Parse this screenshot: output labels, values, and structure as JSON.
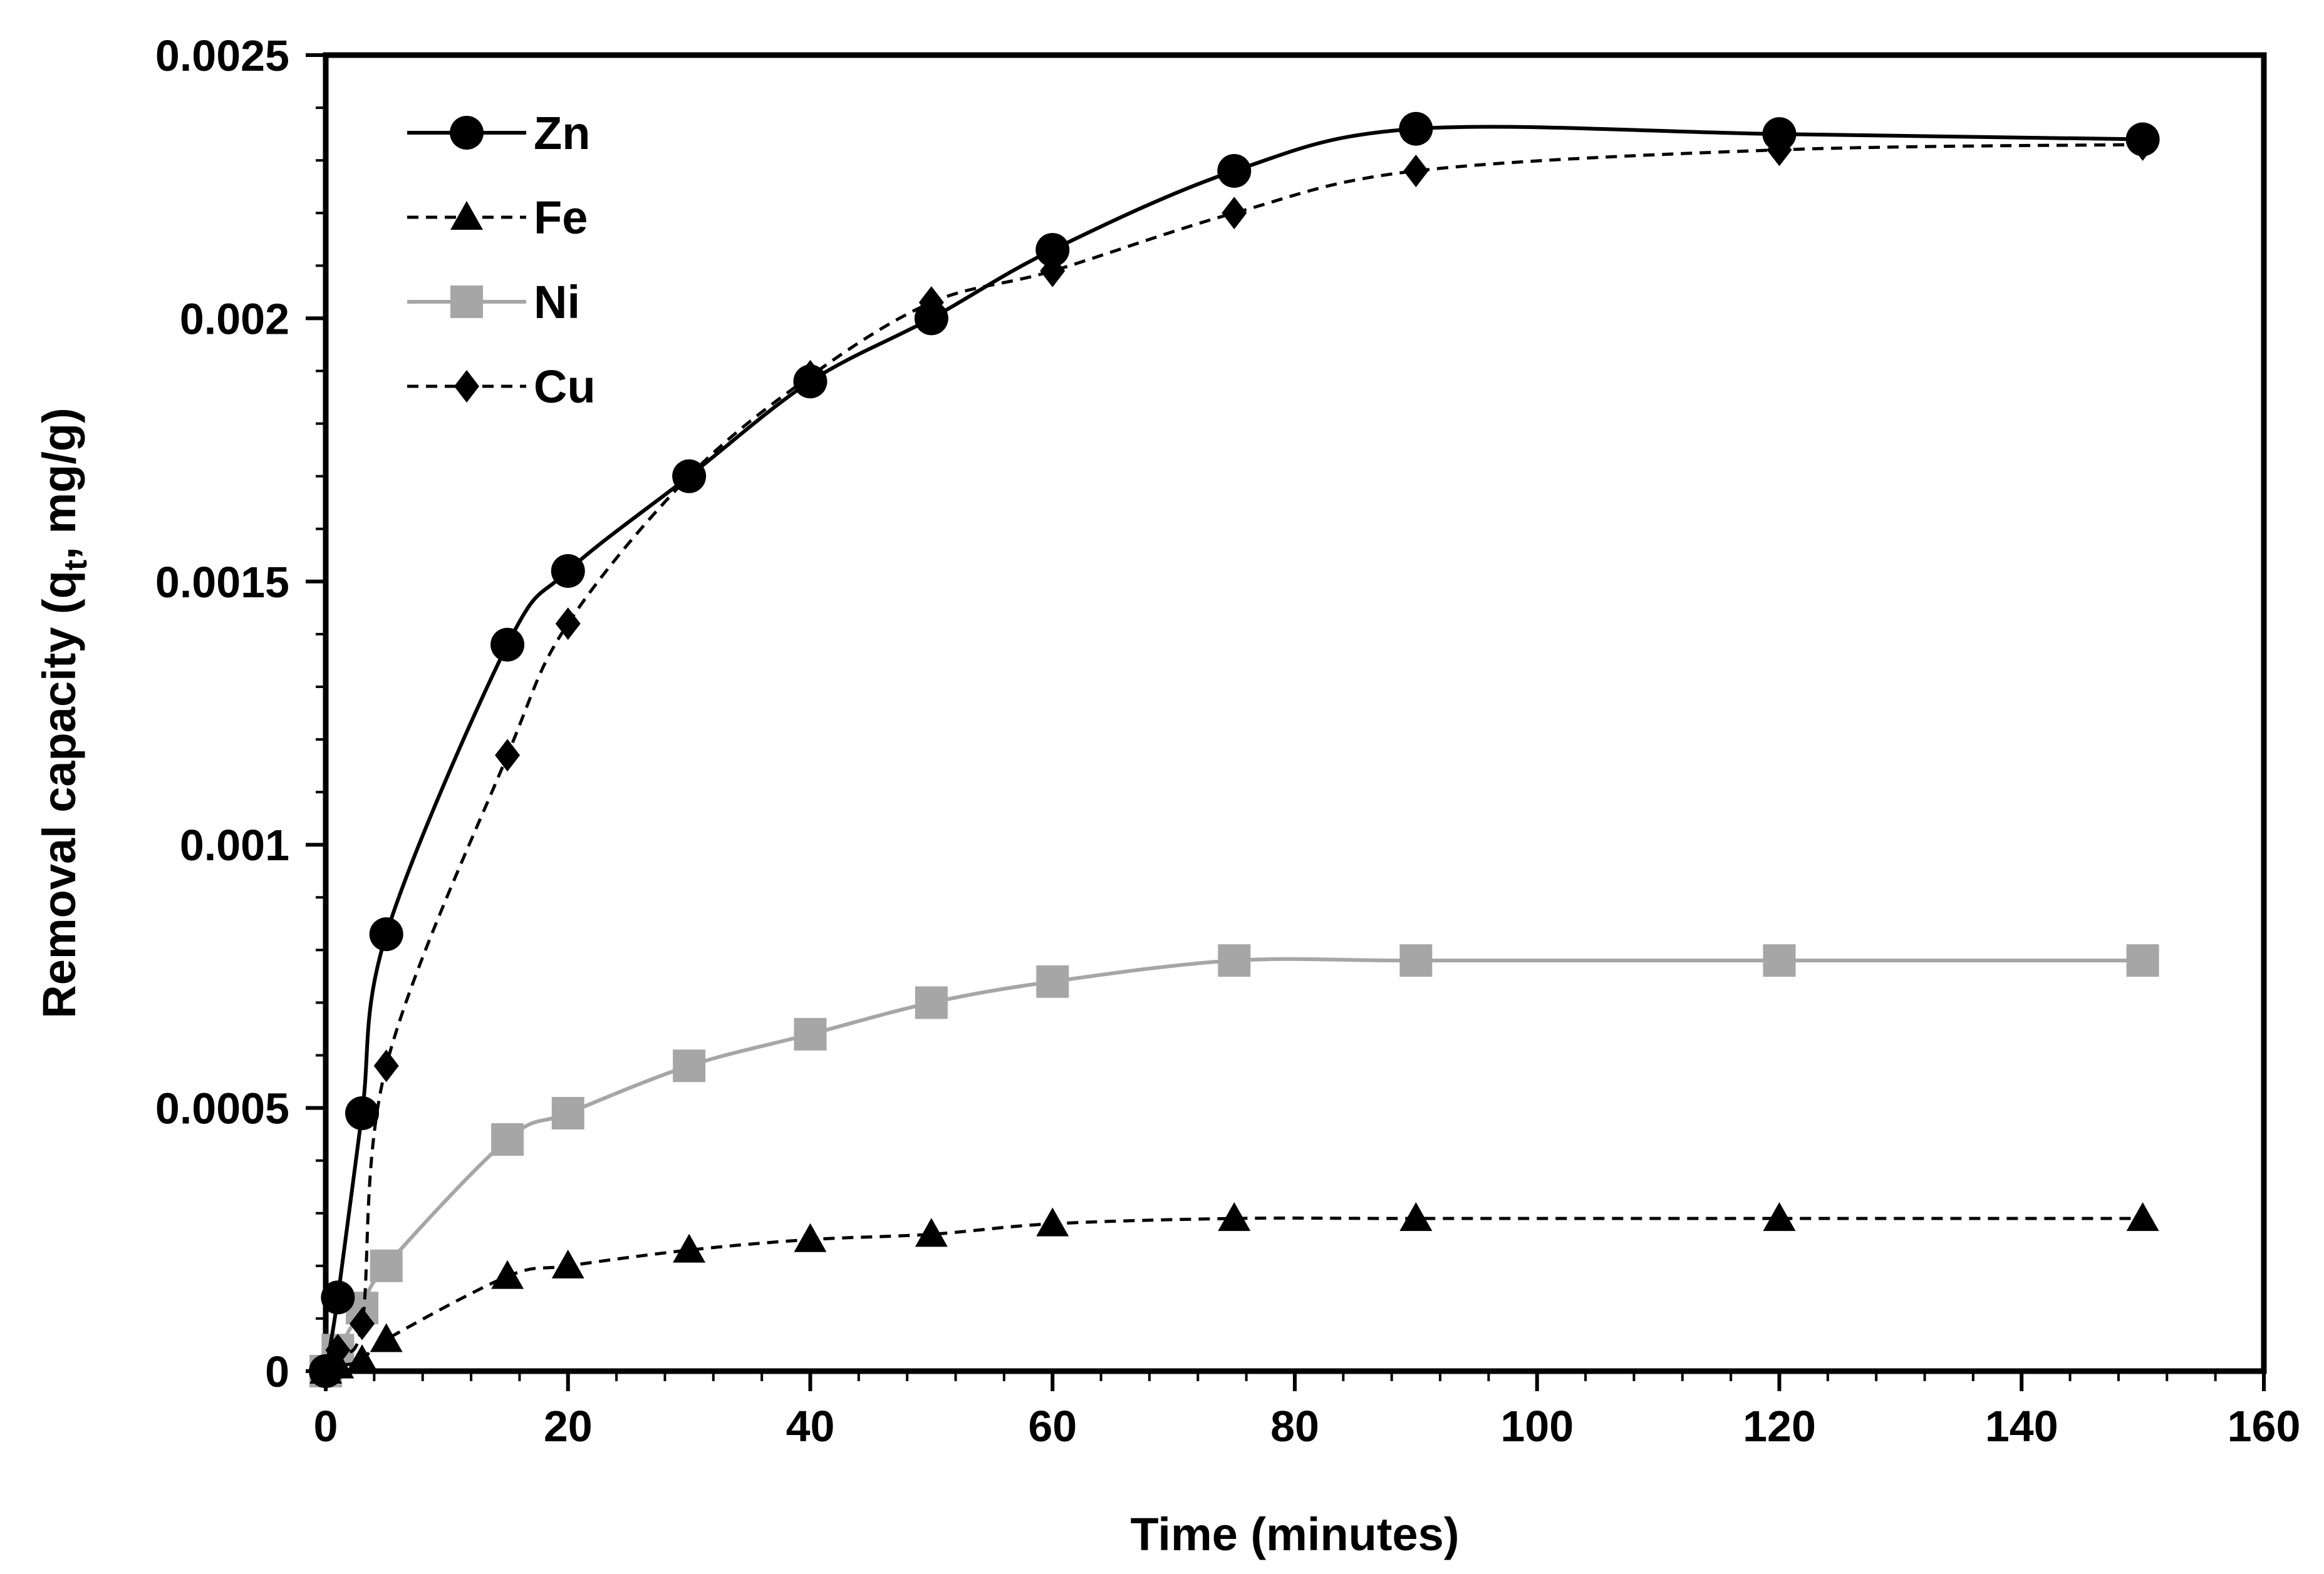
{
  "chart_data": {
    "type": "line",
    "title": "",
    "xlabel": "Time (minutes)",
    "ylabel": {
      "main": "Removal capacity (q",
      "sub": "t",
      "tail": ", mg/g)"
    },
    "xlim": [
      0,
      160
    ],
    "ylim": [
      0,
      0.0025
    ],
    "xticks": [
      0,
      20,
      40,
      60,
      80,
      100,
      120,
      140,
      160
    ],
    "xtick_labels": [
      "0",
      "20",
      "40",
      "60",
      "80",
      "100",
      "120",
      "140",
      "160"
    ],
    "yticks": [
      0,
      0.0005,
      0.001,
      0.0015,
      0.002,
      0.0025
    ],
    "ytick_labels": [
      "0",
      "0.0005",
      "0.001",
      "0.0015",
      "0.002",
      "0.0025"
    ],
    "grid": false,
    "legend_position": "top-left",
    "series": [
      {
        "name": "Zn",
        "marker": "circle",
        "line": "solid",
        "color": "#000000",
        "x": [
          0,
          1,
          3,
          5,
          15,
          20,
          30,
          40,
          50,
          60,
          75,
          90,
          120,
          150
        ],
        "y": [
          0,
          0.00014,
          0.00049,
          0.00083,
          0.00138,
          0.00152,
          0.0017,
          0.00188,
          0.002,
          0.00213,
          0.00228,
          0.00236,
          0.00235,
          0.00234
        ]
      },
      {
        "name": "Fe",
        "marker": "triangle",
        "line": "dashed",
        "color": "#000000",
        "x": [
          0,
          1,
          3,
          5,
          15,
          20,
          30,
          40,
          50,
          60,
          75,
          90,
          120,
          150
        ],
        "y": [
          0,
          1e-05,
          2e-05,
          6e-05,
          0.00018,
          0.0002,
          0.00023,
          0.00025,
          0.00026,
          0.00028,
          0.00029,
          0.00029,
          0.00029,
          0.00029
        ]
      },
      {
        "name": "Ni",
        "marker": "square",
        "line": "solid",
        "color": "#a6a6a6",
        "x": [
          0,
          1,
          3,
          5,
          15,
          20,
          30,
          40,
          50,
          60,
          75,
          90,
          120,
          150
        ],
        "y": [
          0,
          4e-05,
          0.00012,
          0.0002,
          0.00044,
          0.00049,
          0.00058,
          0.00064,
          0.0007,
          0.00074,
          0.00078,
          0.00078,
          0.00078,
          0.00078
        ]
      },
      {
        "name": "Cu",
        "marker": "diamond",
        "line": "dashed",
        "color": "#000000",
        "x": [
          0,
          1,
          3,
          5,
          15,
          20,
          30,
          40,
          50,
          60,
          75,
          90,
          120,
          150
        ],
        "y": [
          0,
          4e-05,
          9e-05,
          0.00058,
          0.00117,
          0.00142,
          0.0017,
          0.00189,
          0.00203,
          0.00209,
          0.0022,
          0.00228,
          0.00232,
          0.00233
        ]
      }
    ]
  }
}
